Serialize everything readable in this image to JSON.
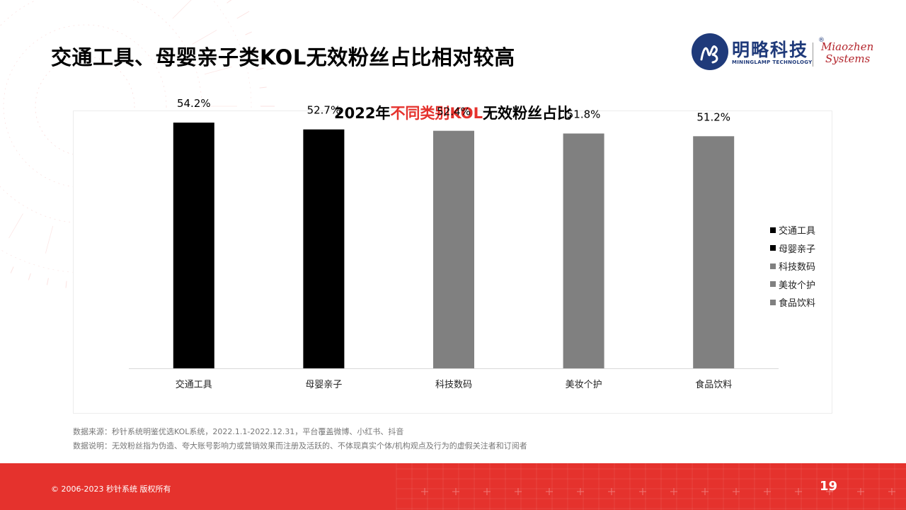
{
  "slide": {
    "title": "交通工具、母婴亲子类KOL无效粉丝占比相对较高",
    "page_number": "19",
    "copyright": "© 2006-2023 秒针系统 版权所有"
  },
  "logo": {
    "cn": "明略科技",
    "reg": "®",
    "en": "MININGLAMP TECHNOLOGY",
    "mz_line1": "Miaozhen",
    "mz_line2": "Systems"
  },
  "chart_title": {
    "prefix": "2022年",
    "highlight": "不同类别KOL",
    "suffix": "无效粉丝占比"
  },
  "colors": {
    "accent": "#e5322d",
    "bar_dark": "#000000",
    "bar_grey": "#808080"
  },
  "chart_data": {
    "type": "bar",
    "title": "2022年不同类别KOL无效粉丝占比",
    "categories": [
      "交通工具",
      "母婴亲子",
      "科技数码",
      "美妆个护",
      "食品饮料"
    ],
    "values": [
      54.2,
      52.7,
      52.4,
      51.8,
      51.2
    ],
    "value_labels": [
      "54.2%",
      "52.7%",
      "52.4%",
      "51.8%",
      "51.2%"
    ],
    "bar_colors": [
      "#000000",
      "#000000",
      "#808080",
      "#808080",
      "#808080"
    ],
    "unit": "%",
    "ylim": [
      0,
      60
    ],
    "grid": false,
    "legend_position": "right",
    "legend": [
      {
        "label": "交通工具",
        "color": "#000000"
      },
      {
        "label": "母婴亲子",
        "color": "#000000"
      },
      {
        "label": "科技数码",
        "color": "#808080"
      },
      {
        "label": "美妆个护",
        "color": "#808080"
      },
      {
        "label": "食品饮料",
        "color": "#808080"
      }
    ]
  },
  "notes": {
    "source": "数据来源：秒针系统明鉴优选KOL系统，2022.1.1-2022.12.31，平台覆盖微博、小红书、抖音",
    "definition": "数据说明：无效粉丝指为伪造、夸大账号影响力或营销效果而注册及活跃的、不体现真实个体/机构观点及行为的虚假关注者和订阅者"
  }
}
